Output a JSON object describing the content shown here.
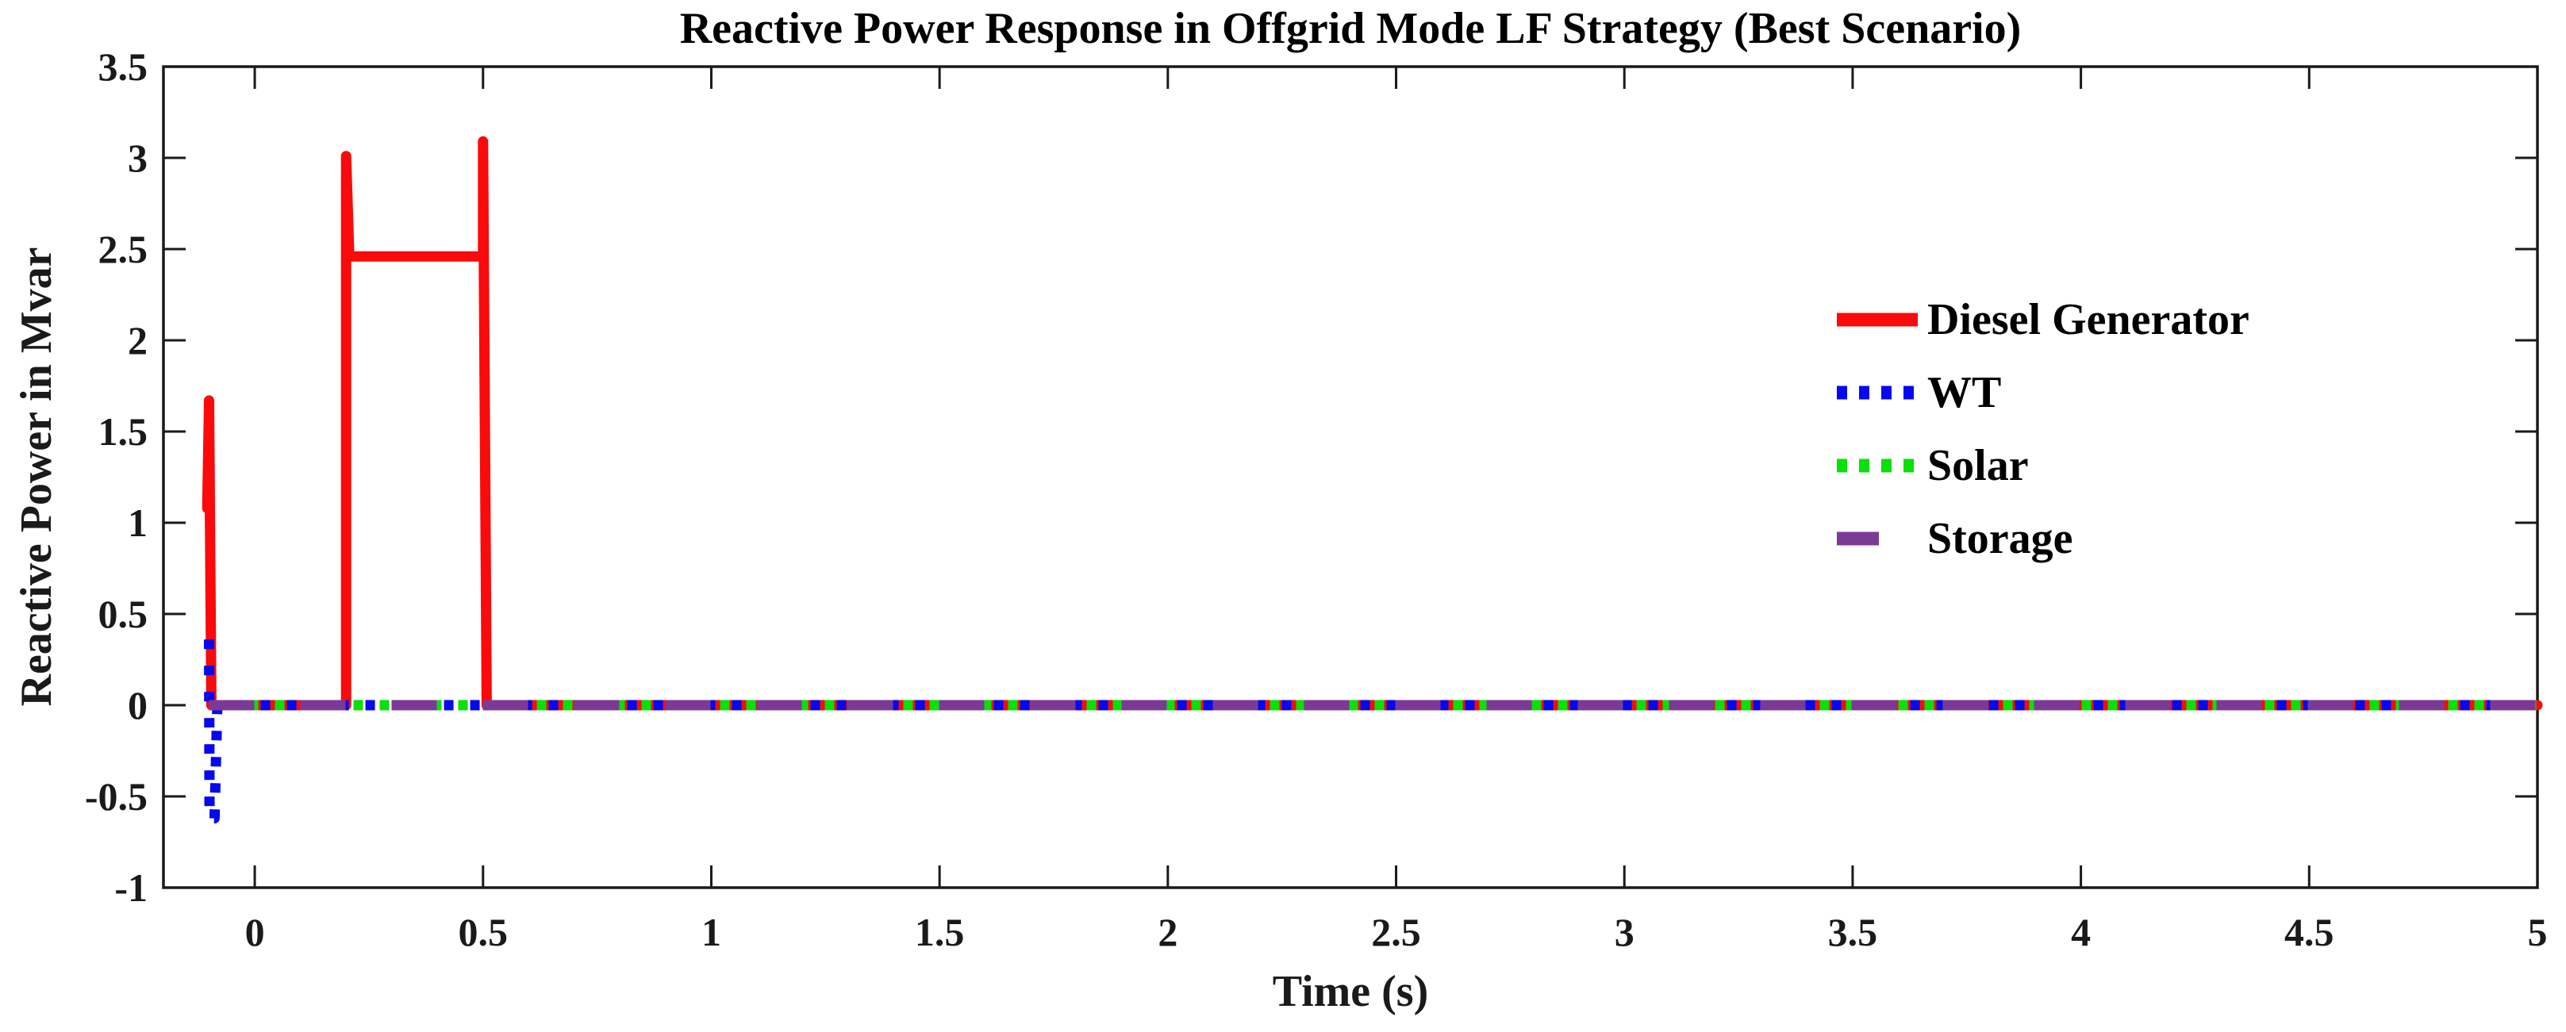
{
  "figure": {
    "background_color": "#ffffff",
    "frame_color": "#1a1a1a",
    "tick_label_color": "#1a1a1a",
    "title_color": "#000000"
  },
  "chart_data": {
    "type": "line",
    "title": "Reactive Power Response in Offgrid Mode LF Strategy (Best Scenario)",
    "xlabel": "Time (s)",
    "ylabel": "Reactive Power in Mvar",
    "xlim": [
      -0.2,
      5
    ],
    "ylim": [
      -1,
      3.5
    ],
    "grid": false,
    "axes_box": true,
    "tick_direction": "in",
    "xticks": {
      "values": [
        0,
        0.5,
        1,
        1.5,
        2,
        2.5,
        3,
        3.5,
        4,
        4.5,
        5
      ],
      "labels": [
        "0",
        "0.5",
        "1",
        "1.5",
        "2",
        "2.5",
        "3",
        "3.5",
        "4",
        "4.5",
        "5"
      ]
    },
    "yticks": {
      "values": [
        -1,
        -0.5,
        0,
        0.5,
        1,
        1.5,
        2,
        2.5,
        3,
        3.5
      ],
      "labels": [
        "-1",
        "-0.5",
        "0",
        "0.5",
        "1",
        "1.5",
        "2",
        "2.5",
        "3",
        "3.5"
      ]
    },
    "legend": {
      "position": "inside-upper-right",
      "border": "none",
      "items": [
        "Diesel Generator",
        "WT",
        "Solar",
        "Storage"
      ]
    },
    "series": [
      {
        "name": "Diesel Generator",
        "color": "#fa0a0a",
        "style": "solid",
        "line_width": 13,
        "points": [
          [
            -0.104,
            1.08
          ],
          [
            -0.1,
            1.67
          ],
          [
            -0.095,
            0
          ],
          [
            0.2,
            0
          ],
          [
            0.2,
            3.01
          ],
          [
            0.207,
            2.46
          ],
          [
            0.5,
            2.46
          ],
          [
            0.5,
            3.09
          ],
          [
            0.508,
            0
          ],
          [
            5,
            0
          ]
        ]
      },
      {
        "name": "WT",
        "color": "#0508f0",
        "style": "dotted",
        "line_width": 13,
        "points": [
          [
            -0.1,
            0.36
          ],
          [
            -0.099,
            -0.62
          ],
          [
            -0.088,
            -0.62
          ],
          [
            -0.082,
            0
          ],
          [
            5,
            0
          ]
        ]
      },
      {
        "name": "Solar",
        "color": "#09e009",
        "style": "dotted",
        "line_width": 13,
        "points": [
          [
            -0.1,
            0
          ],
          [
            5,
            0
          ]
        ]
      },
      {
        "name": "Storage",
        "color": "#7c3a97",
        "style": "dashed",
        "line_width": 13,
        "points": [
          [
            -0.1,
            0
          ],
          [
            5,
            0
          ]
        ]
      }
    ]
  }
}
